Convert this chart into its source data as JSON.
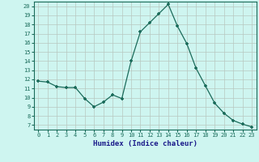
{
  "x": [
    0,
    1,
    2,
    3,
    4,
    5,
    6,
    7,
    8,
    9,
    10,
    11,
    12,
    13,
    14,
    15,
    16,
    17,
    18,
    19,
    20,
    21,
    22,
    23
  ],
  "y": [
    11.8,
    11.7,
    11.2,
    11.1,
    11.1,
    9.9,
    9.0,
    9.5,
    10.3,
    9.9,
    14.0,
    17.2,
    18.2,
    19.2,
    20.2,
    17.8,
    15.9,
    13.2,
    11.3,
    9.4,
    8.3,
    7.5,
    7.1,
    6.8
  ],
  "xlabel": "Humidex (Indice chaleur)",
  "xlim": [
    -0.5,
    23.5
  ],
  "ylim": [
    6.5,
    20.5
  ],
  "yticks": [
    7,
    8,
    9,
    10,
    11,
    12,
    13,
    14,
    15,
    16,
    17,
    18,
    19,
    20
  ],
  "xticks": [
    0,
    1,
    2,
    3,
    4,
    5,
    6,
    7,
    8,
    9,
    10,
    11,
    12,
    13,
    14,
    15,
    16,
    17,
    18,
    19,
    20,
    21,
    22,
    23
  ],
  "line_color": "#1a6b5a",
  "marker": "+",
  "bg_color": "#cef5f0",
  "grid_color": "#b8c8c0",
  "xlabel_color": "#1a1a8a",
  "tick_color": "#1a6b5a"
}
